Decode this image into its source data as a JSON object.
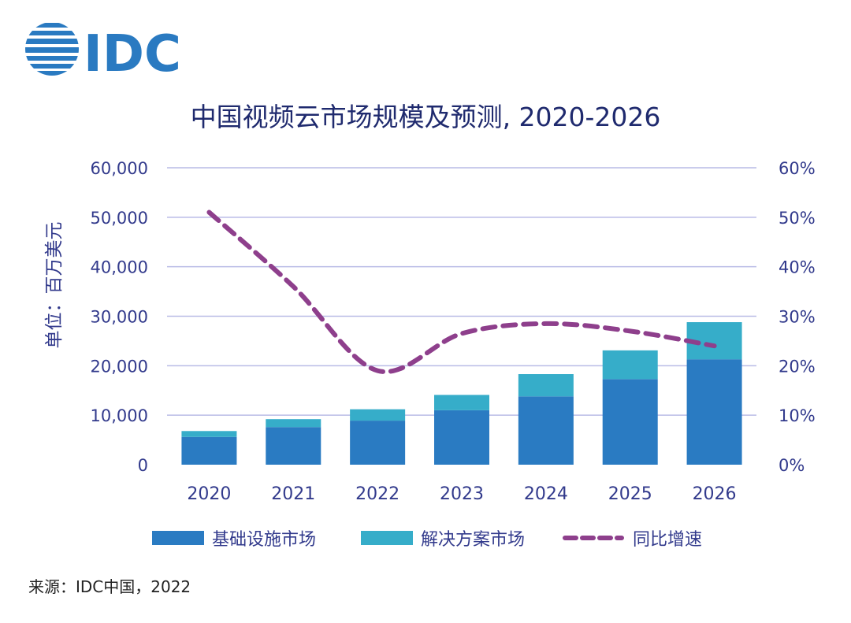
{
  "logo": {
    "text": "IDC"
  },
  "source": "来源：IDC中国，2022",
  "colors": {
    "infrastructure": "#2a7bc2",
    "solution": "#36adc9",
    "growth": "#8e3f8c",
    "title": "#1f2a6e",
    "axis_text": "#323a8c",
    "grid": "#b9bbe6",
    "logo": "#2a7ac1"
  },
  "chart_data": {
    "type": "bar",
    "stacked": true,
    "title": "中国视频云市场规模及预测, 2020-2026",
    "ylabel": "单位：百万美元",
    "y2label": "",
    "xlabel": "",
    "categories": [
      "2020",
      "2021",
      "2022",
      "2023",
      "2024",
      "2025",
      "2026"
    ],
    "ylim": [
      0,
      60000
    ],
    "y_ticks": [
      "0",
      "10,000",
      "20,000",
      "30,000",
      "40,000",
      "50,000",
      "60,000"
    ],
    "y2lim": [
      0,
      60
    ],
    "y2_ticks": [
      "0%",
      "10%",
      "20%",
      "30%",
      "40%",
      "50%",
      "60%"
    ],
    "grid": true,
    "legend_position": "bottom",
    "series": [
      {
        "name": "基础设施市场",
        "type": "bar",
        "values": [
          5600,
          7600,
          8900,
          11000,
          13800,
          17300,
          21300
        ]
      },
      {
        "name": "解决方案市场",
        "type": "bar",
        "values": [
          1200,
          1600,
          2300,
          3100,
          4500,
          5800,
          7500
        ]
      },
      {
        "name": "同比增速",
        "type": "line",
        "axis": "right",
        "dashed": true,
        "values": [
          51,
          36,
          19,
          26.5,
          28.5,
          27,
          24
        ]
      }
    ]
  }
}
